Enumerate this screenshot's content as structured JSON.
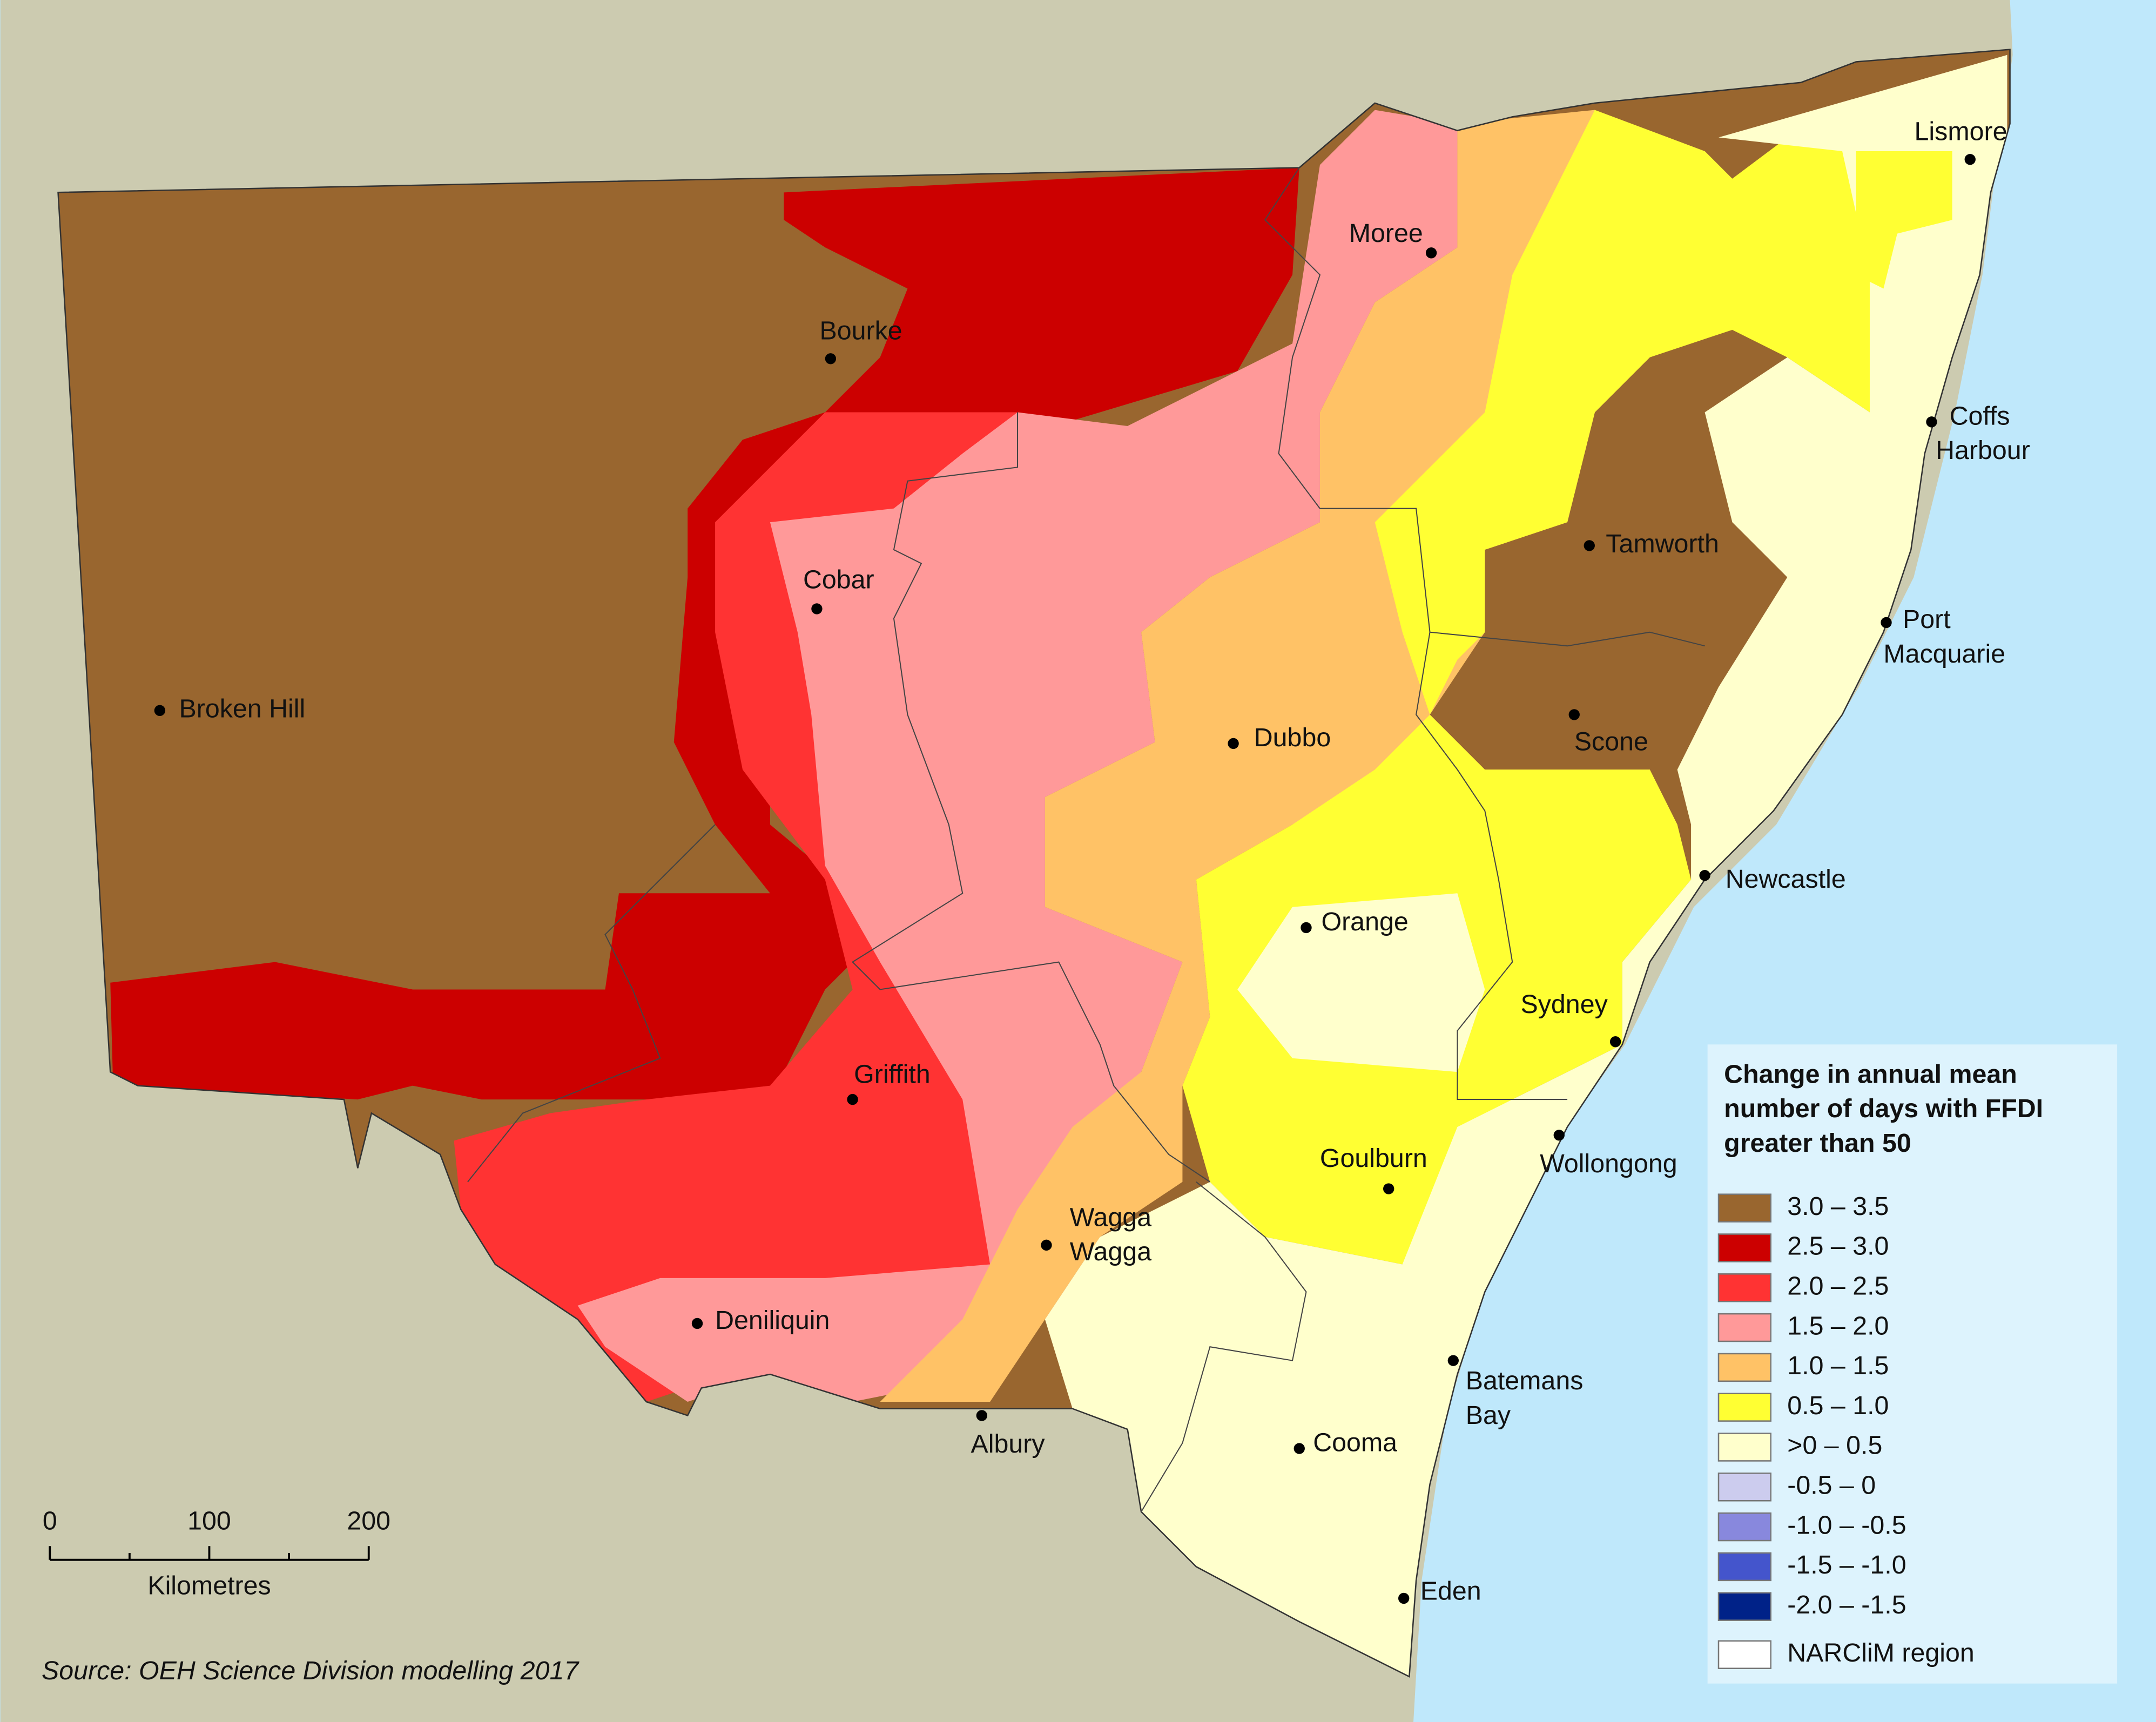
{
  "legend": {
    "title": [
      "Change in annual mean",
      "number of days with FFDI",
      "greater than 50"
    ],
    "items": [
      {
        "label": "3.0 – 3.5",
        "color": "#99662f"
      },
      {
        "label": "2.5 – 3.0",
        "color": "#cc0000"
      },
      {
        "label": "2.0 – 2.5",
        "color": "#ff3333"
      },
      {
        "label": "1.5 – 2.0",
        "color": "#ff9999"
      },
      {
        "label": "1.0 – 1.5",
        "color": "#ffc266"
      },
      {
        "label": "0.5 – 1.0",
        "color": "#ffff33"
      },
      {
        "label": ">0 – 0.5",
        "color": "#ffffcc"
      },
      {
        "label": "-0.5 – 0",
        "color": "#ccccee"
      },
      {
        "label": "-1.0 – -0.5",
        "color": "#8888dd"
      },
      {
        "label": "-1.5 – -1.0",
        "color": "#4455cc"
      },
      {
        "label": "-2.0 – -1.5",
        "color": "#002288"
      },
      {
        "label": "NARCliM region",
        "color": "#ffffff"
      }
    ]
  },
  "places": [
    {
      "lines": [
        "Lismore"
      ]
    },
    {
      "lines": [
        "Moree"
      ]
    },
    {
      "lines": [
        "Bourke"
      ]
    },
    {
      "lines": [
        "Coffs",
        "Harbour"
      ]
    },
    {
      "lines": [
        "Tamworth"
      ]
    },
    {
      "lines": [
        "Cobar"
      ]
    },
    {
      "lines": [
        "Port",
        "Macquarie"
      ]
    },
    {
      "lines": [
        "Broken Hill"
      ]
    },
    {
      "lines": [
        "Dubbo"
      ]
    },
    {
      "lines": [
        "Scone"
      ]
    },
    {
      "lines": [
        "Newcastle"
      ]
    },
    {
      "lines": [
        "Orange"
      ]
    },
    {
      "lines": [
        "Sydney"
      ]
    },
    {
      "lines": [
        "Griffith"
      ]
    },
    {
      "lines": [
        "Wollongong"
      ]
    },
    {
      "lines": [
        "Goulburn"
      ]
    },
    {
      "lines": [
        "Wagga",
        "Wagga"
      ]
    },
    {
      "lines": [
        "Deniliquin"
      ]
    },
    {
      "lines": [
        "Batemans",
        "Bay"
      ]
    },
    {
      "lines": [
        "Albury"
      ]
    },
    {
      "lines": [
        "Cooma"
      ]
    },
    {
      "lines": [
        "Eden"
      ]
    }
  ],
  "scale_bar": {
    "ticks": [
      "0",
      "100",
      "200"
    ],
    "unit": "Kilometres"
  },
  "source": "Source: OEH Science Division modelling 2017"
}
